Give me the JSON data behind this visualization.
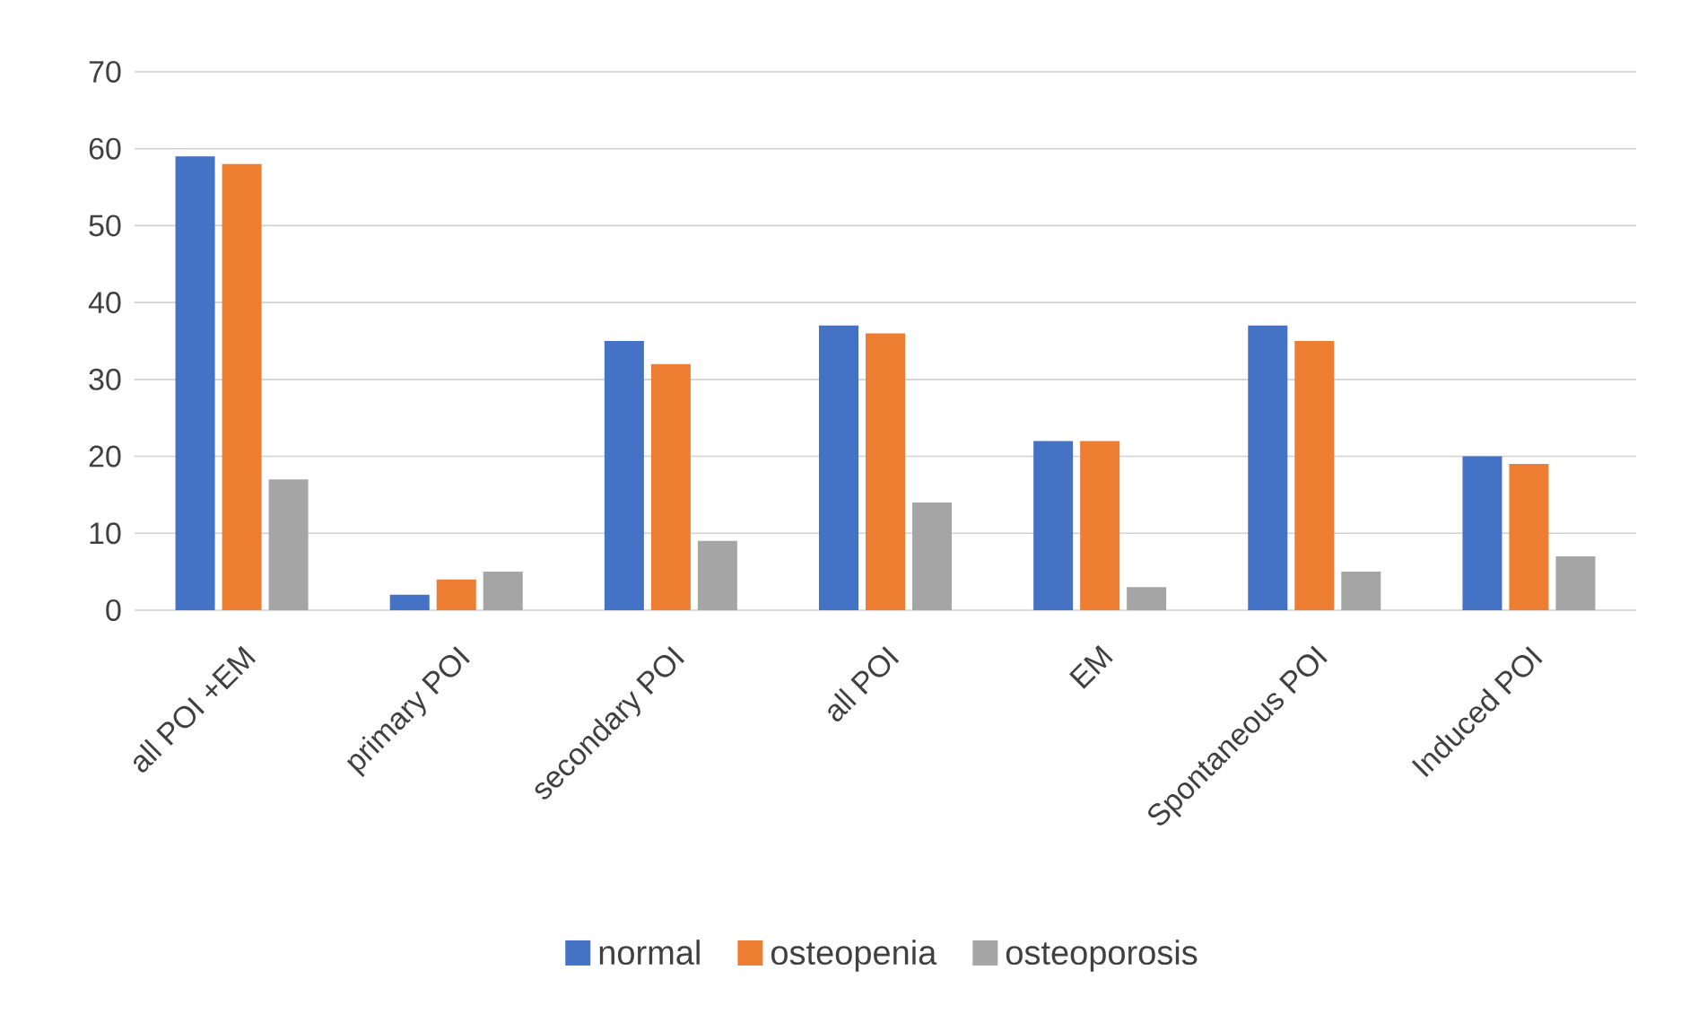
{
  "chart_data": {
    "type": "bar",
    "categories": [
      "all POI +EM",
      "primary POI",
      "secondary POI",
      "all POI",
      "EM",
      "Spontaneous POI",
      "Induced POI"
    ],
    "series": [
      {
        "name": "normal",
        "color": "#4472c4",
        "values": [
          59,
          2,
          35,
          37,
          22,
          37,
          20
        ]
      },
      {
        "name": "osteopenia",
        "color": "#ed7d31",
        "values": [
          58,
          4,
          32,
          36,
          22,
          35,
          19
        ]
      },
      {
        "name": "osteoporosis",
        "color": "#a5a5a5",
        "values": [
          17,
          5,
          9,
          14,
          3,
          5,
          7
        ]
      }
    ],
    "ylim": [
      0,
      70
    ],
    "yticks": [
      0,
      10,
      20,
      30,
      40,
      50,
      60,
      70
    ],
    "grid": "y",
    "legend": "bottom"
  }
}
